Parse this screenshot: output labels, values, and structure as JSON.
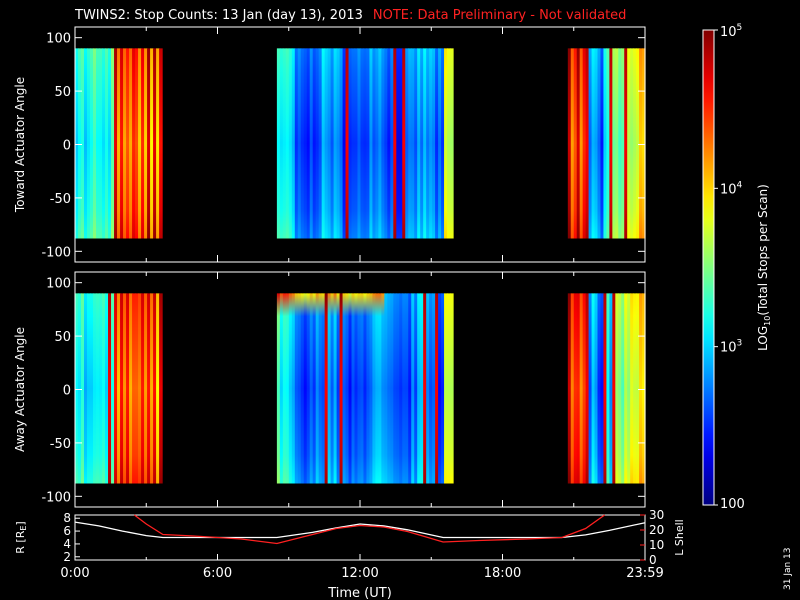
{
  "title": {
    "main": "TWINS2: Stop Counts: 13 Jan (day  13), 2013",
    "note": "NOTE: Data Preliminary - Not validated"
  },
  "date_stamp": "31 Jan 13",
  "colors": {
    "background": "#000000",
    "foreground": "#ffffff",
    "note": "#ff2222",
    "lshell": "#ff2020",
    "radius": "#ffffff"
  },
  "colorbar": {
    "label_prefix": "LOG",
    "label_sub": "10",
    "label_suffix": "(Total Stops per Scan)",
    "scale": "log",
    "range": [
      100,
      100000
    ],
    "ticks": [
      {
        "value": 100,
        "label": "100",
        "sup": ""
      },
      {
        "value": 1000,
        "label": "10",
        "sup": "3"
      },
      {
        "value": 10000,
        "label": "10",
        "sup": "4"
      },
      {
        "value": 100000,
        "label": "10",
        "sup": "5"
      }
    ]
  },
  "chart_data": [
    {
      "type": "heatmap",
      "id": "toward",
      "ylabel": "Toward Actuator Angle",
      "ylim": [
        -110,
        110
      ],
      "yticks": [
        100,
        50,
        0,
        -50,
        -100
      ],
      "data_y_range": [
        -88,
        90
      ],
      "xlim_hours": [
        0,
        24
      ],
      "data_blocks": [
        {
          "start": "00:00",
          "end": "03:40"
        },
        {
          "start": "08:30",
          "end": "15:55"
        },
        {
          "start": "20:45",
          "end": "23:59"
        }
      ]
    },
    {
      "type": "heatmap",
      "id": "away",
      "ylabel": "Away Actuator Angle",
      "ylim": [
        -110,
        110
      ],
      "yticks": [
        100,
        50,
        0,
        -50,
        -100
      ],
      "data_y_range": [
        -88,
        90
      ],
      "xlim_hours": [
        0,
        24
      ],
      "data_blocks": [
        {
          "start": "00:00",
          "end": "03:40"
        },
        {
          "start": "08:30",
          "end": "15:55"
        },
        {
          "start": "20:45",
          "end": "23:59"
        }
      ]
    },
    {
      "type": "line",
      "id": "ephemeris",
      "xlabel": "Time (UT)",
      "xticks": [
        "0:00",
        "6:00",
        "12:00",
        "18:00",
        "23:59"
      ],
      "ylabel_left": "R [R",
      "ylabel_left_sub": "E",
      "ylabel_left_end": "]",
      "ylim_left": [
        1.5,
        8.5
      ],
      "yticks_left": [
        "8",
        "6",
        "4",
        "2"
      ],
      "ylabel_right": "L Shell",
      "ylim_right": [
        0,
        30
      ],
      "yticks_right": [
        "30",
        "20",
        "10",
        "0"
      ],
      "series": [
        {
          "name": "R",
          "axis": "left",
          "x_hours": [
            0,
            1,
            2,
            3,
            3.7,
            5,
            6,
            7,
            8.5,
            10,
            11,
            12,
            13,
            14,
            15.5,
            17,
            19,
            20.5,
            21.5,
            22.5,
            24
          ],
          "values": [
            7.4,
            6.8,
            6.0,
            5.3,
            5.0,
            5.0,
            5.0,
            5.0,
            5.0,
            5.8,
            6.5,
            7.1,
            6.8,
            6.2,
            5.0,
            5.0,
            5.0,
            5.0,
            5.4,
            6.1,
            7.3
          ]
        },
        {
          "name": "L Shell",
          "axis": "right",
          "x_hours": [
            2.5,
            3.0,
            3.7,
            5,
            6,
            7,
            8.5,
            10,
            11,
            12,
            13,
            14,
            15.5,
            17,
            19,
            20.5,
            21.5,
            22.3
          ],
          "values": [
            30,
            24,
            17,
            16,
            15,
            14,
            11,
            17,
            21,
            23,
            22,
            19,
            12,
            13,
            14,
            15,
            21,
            30
          ]
        }
      ]
    }
  ]
}
